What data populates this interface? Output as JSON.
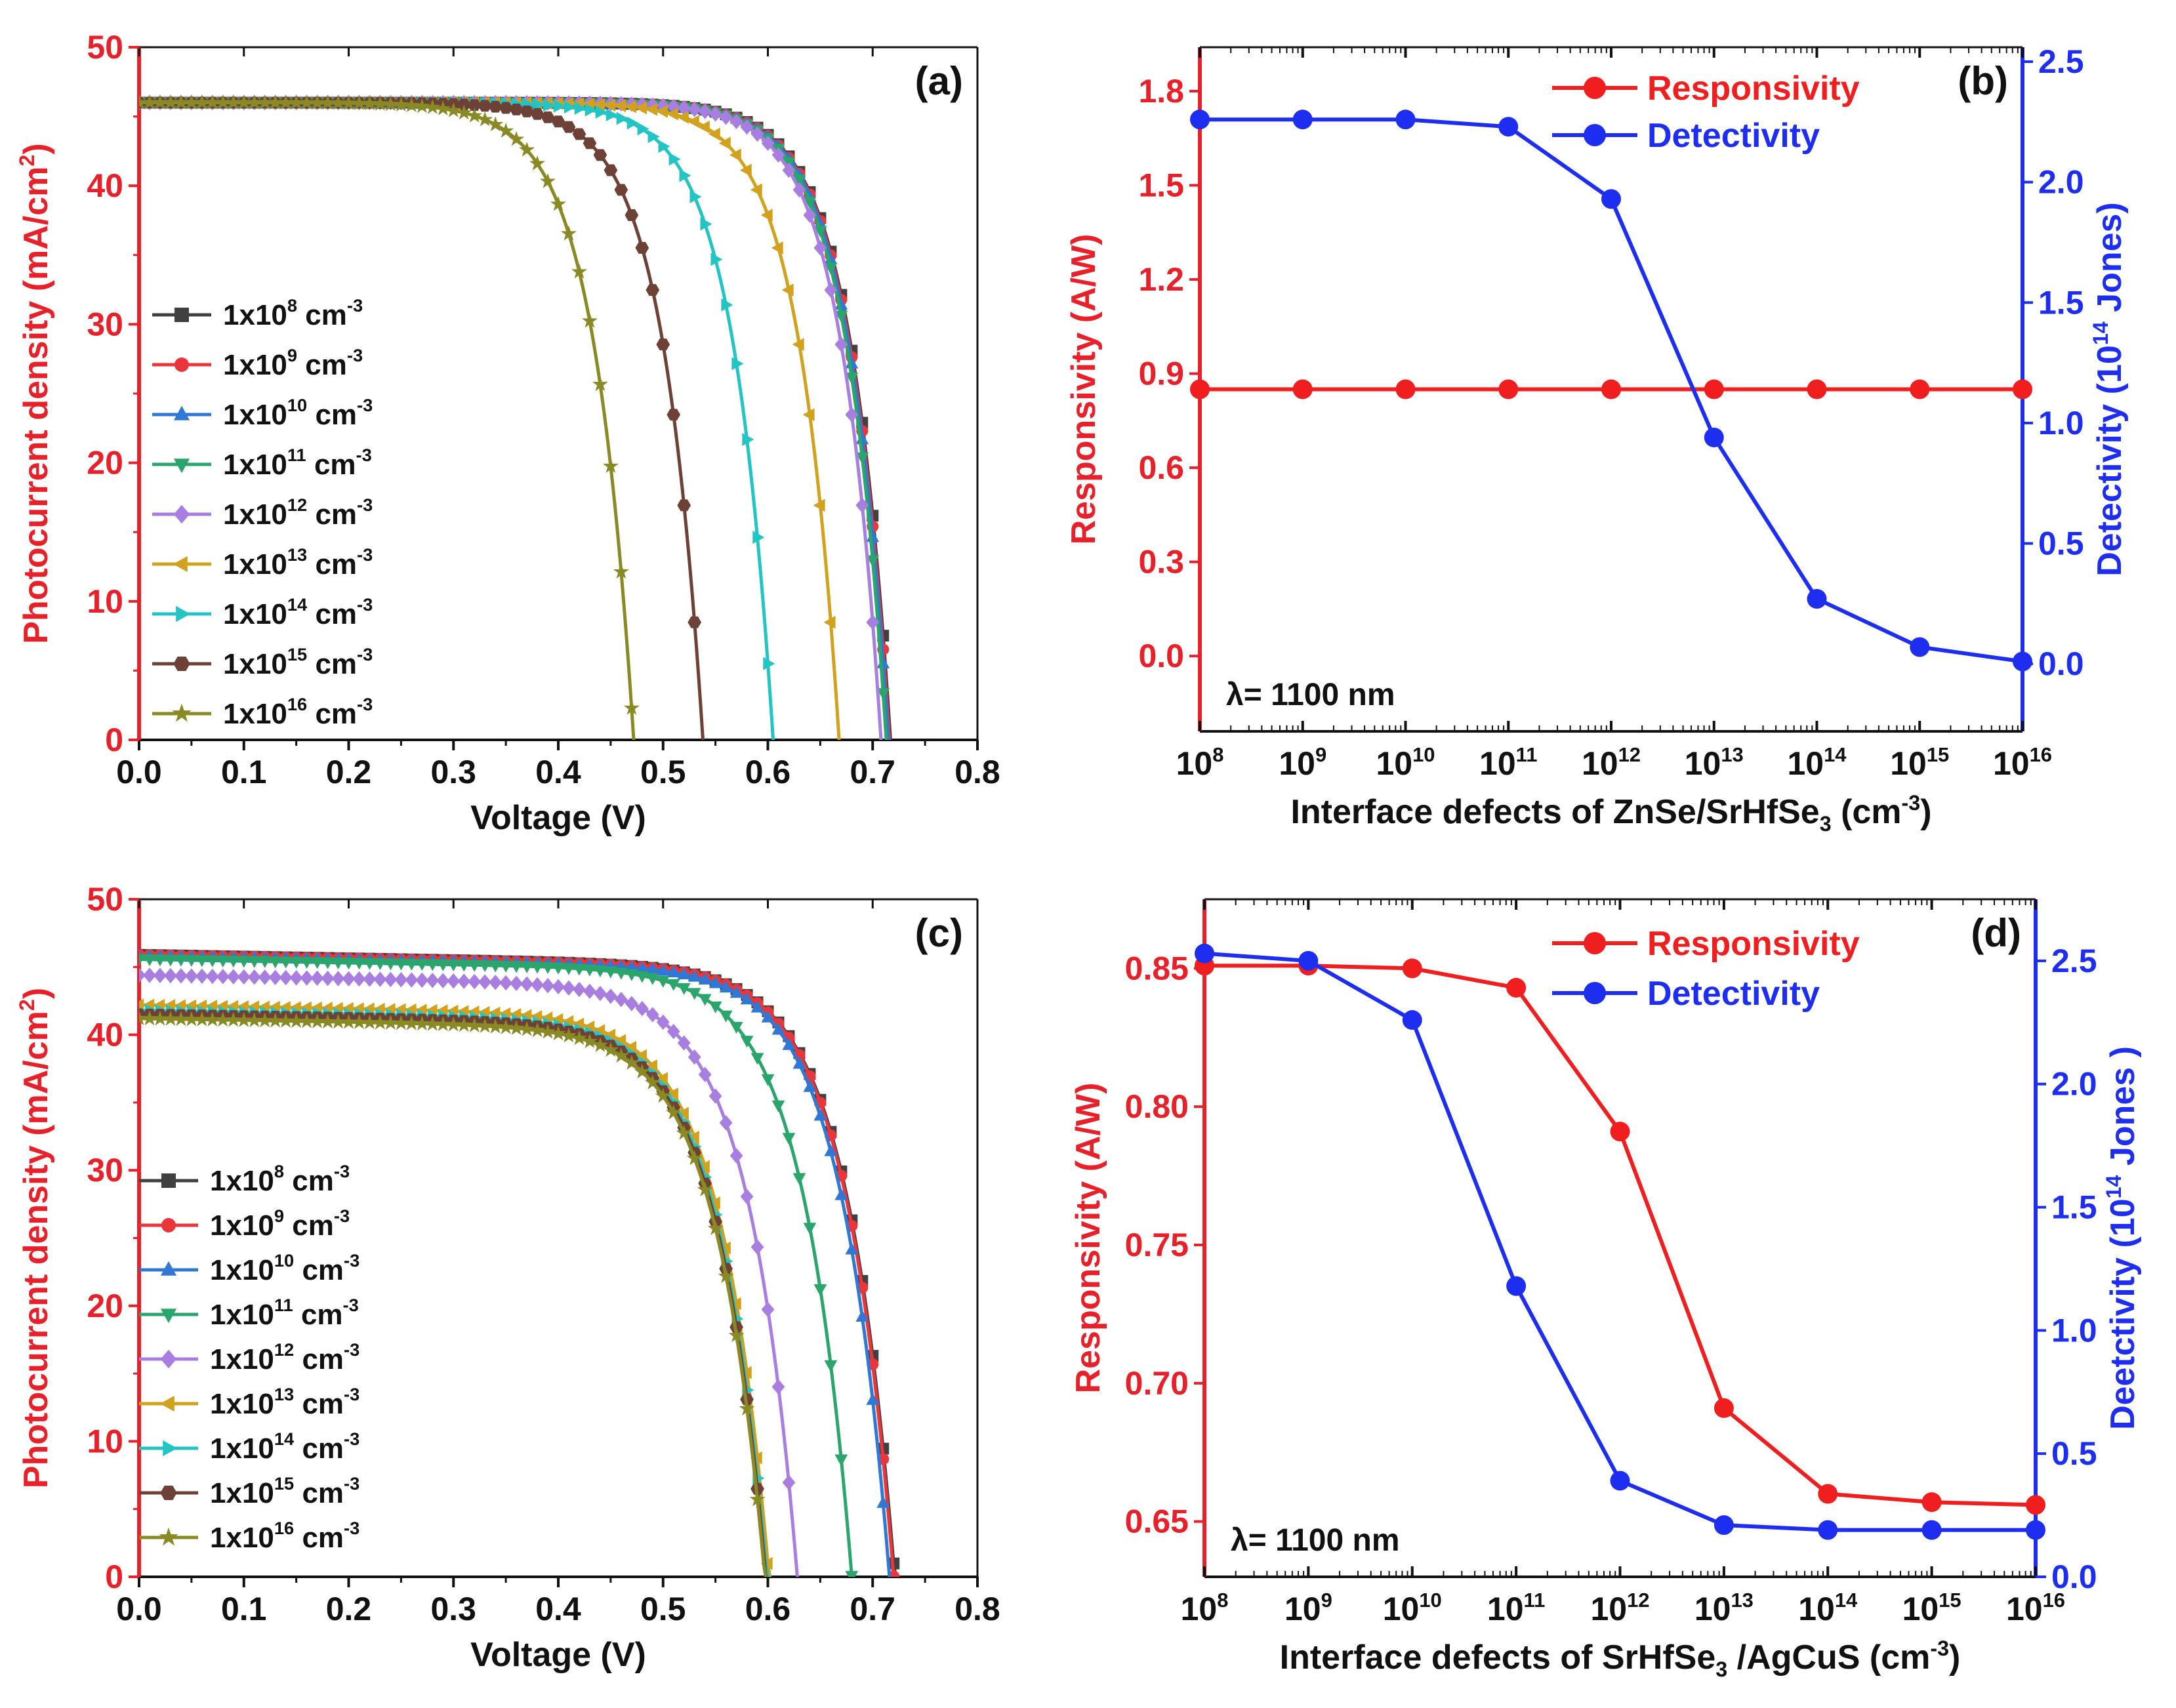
{
  "chart_data": [
    {
      "panel_label": "(a)",
      "type": "line",
      "xlabel": "Voltage (V)",
      "ylabel_main": "Photocurrent density (mA/cm",
      "ylabel_sup": "2",
      "ylabel_close": ")",
      "xlim": [
        0,
        0.8
      ],
      "ylim": [
        0,
        50
      ],
      "xticks": [
        "0.0",
        "0.1",
        "0.2",
        "0.3",
        "0.4",
        "0.5",
        "0.6",
        "0.7",
        "0.8"
      ],
      "yticks": [
        "0",
        "10",
        "20",
        "30",
        "40",
        "50"
      ],
      "jsc": 46,
      "legend_unit": "cm",
      "legend_unit_exp": "-3",
      "series": [
        {
          "prefix": "1x10",
          "exp": "8",
          "name": "1x10^8 cm^-3",
          "voc": 0.717,
          "color": "#404040",
          "marker": "square"
        },
        {
          "prefix": "1x10",
          "exp": "9",
          "name": "1x10^9 cm^-3",
          "voc": 0.716,
          "color": "#e8363a",
          "marker": "circle"
        },
        {
          "prefix": "1x10",
          "exp": "10",
          "name": "1x10^10 cm^-3",
          "voc": 0.715,
          "color": "#2f78d6",
          "marker": "tri-up"
        },
        {
          "prefix": "1x10",
          "exp": "11",
          "name": "1x10^11 cm^-3",
          "voc": 0.713,
          "color": "#2aa66c",
          "marker": "tri-down"
        },
        {
          "prefix": "1x10",
          "exp": "12",
          "name": "1x10^12 cm^-3",
          "voc": 0.708,
          "color": "#a87ee0",
          "marker": "diamond"
        },
        {
          "prefix": "1x10",
          "exp": "13",
          "name": "1x10^13 cm^-3",
          "voc": 0.668,
          "color": "#d2a21f",
          "marker": "tri-left"
        },
        {
          "prefix": "1x10",
          "exp": "14",
          "name": "1x10^14 cm^-3",
          "voc": 0.605,
          "color": "#23c4c4",
          "marker": "tri-right"
        },
        {
          "prefix": "1x10",
          "exp": "15",
          "name": "1x10^15 cm^-3",
          "voc": 0.538,
          "color": "#6e4136",
          "marker": "hexagon"
        },
        {
          "prefix": "1x10",
          "exp": "16",
          "name": "1x10^16 cm^-3",
          "voc": 0.472,
          "color": "#8a8a24",
          "marker": "star"
        }
      ]
    },
    {
      "panel_label": "(b)",
      "type": "line",
      "note": "λ= 1100 nm",
      "xlabel_main": "Interface defects of ZnSe/SrHfSe",
      "xlabel_sub": "3",
      "xlabel_tail": " (cm",
      "xlabel_sup": "-3",
      "xlabel_close": ")",
      "x_exponents": [
        "8",
        "9",
        "10",
        "11",
        "12",
        "13",
        "14",
        "15",
        "16"
      ],
      "ylabel_left": "Responsivity (A/W)",
      "ylabel_right_main": "Detectivity (10",
      "ylabel_right_sup": "14",
      "ylabel_right_tail": " Jones)",
      "ylim_left": [
        -0.24,
        1.94
      ],
      "yticks_left": [
        "0.0",
        "0.3",
        "0.6",
        "0.9",
        "1.2",
        "1.5",
        "1.8"
      ],
      "ylim_right": [
        -0.28,
        2.56
      ],
      "yticks_right": [
        "0.0",
        "0.5",
        "1.0",
        "1.5",
        "2.0",
        "2.5"
      ],
      "series": [
        {
          "name": "Responsivity",
          "axis": "left",
          "color": "#f01e1e",
          "values": [
            0.85,
            0.85,
            0.85,
            0.85,
            0.85,
            0.85,
            0.85,
            0.85,
            0.85
          ]
        },
        {
          "name": "Detectivity",
          "axis": "right",
          "color": "#1e2ef0",
          "values": [
            2.26,
            2.26,
            2.26,
            2.23,
            1.93,
            0.94,
            0.27,
            0.07,
            0.01
          ]
        }
      ]
    },
    {
      "panel_label": "(c)",
      "type": "line",
      "xlabel": "Voltage (V)",
      "ylabel_main": "Photocurrent density (mA/cm",
      "ylabel_sup": "2",
      "ylabel_close": ")",
      "xlim": [
        0,
        0.8
      ],
      "ylim": [
        0,
        50
      ],
      "xticks": [
        "0.0",
        "0.1",
        "0.2",
        "0.3",
        "0.4",
        "0.5",
        "0.6",
        "0.7",
        "0.8"
      ],
      "yticks": [
        "0",
        "10",
        "20",
        "30",
        "40",
        "50"
      ],
      "legend_unit": "cm",
      "legend_unit_exp": "-3",
      "series": [
        {
          "prefix": "1x10",
          "exp": "8",
          "name": "1x10^8 cm^-3",
          "jsc": 45.9,
          "voc": 0.722,
          "color": "#404040",
          "marker": "square"
        },
        {
          "prefix": "1x10",
          "exp": "9",
          "name": "1x10^9 cm^-3",
          "jsc": 45.9,
          "voc": 0.721,
          "color": "#e8363a",
          "marker": "circle"
        },
        {
          "prefix": "1x10",
          "exp": "10",
          "name": "1x10^10 cm^-3",
          "jsc": 45.8,
          "voc": 0.717,
          "color": "#2f78d6",
          "marker": "tri-up"
        },
        {
          "prefix": "1x10",
          "exp": "11",
          "name": "1x10^11 cm^-3",
          "jsc": 45.6,
          "voc": 0.681,
          "color": "#2aa66c",
          "marker": "tri-down"
        },
        {
          "prefix": "1x10",
          "exp": "12",
          "name": "1x10^12 cm^-3",
          "jsc": 44.4,
          "voc": 0.629,
          "color": "#a87ee0",
          "marker": "diamond"
        },
        {
          "prefix": "1x10",
          "exp": "13",
          "name": "1x10^13 cm^-3",
          "jsc": 42.2,
          "voc": 0.602,
          "color": "#d2a21f",
          "marker": "tri-left"
        },
        {
          "prefix": "1x10",
          "exp": "14",
          "name": "1x10^14 cm^-3",
          "jsc": 41.8,
          "voc": 0.6,
          "color": "#23c4c4",
          "marker": "tri-right"
        },
        {
          "prefix": "1x10",
          "exp": "15",
          "name": "1x10^15 cm^-3",
          "jsc": 41.5,
          "voc": 0.599,
          "color": "#6e4136",
          "marker": "hexagon"
        },
        {
          "prefix": "1x10",
          "exp": "16",
          "name": "1x10^16 cm^-3",
          "jsc": 41.2,
          "voc": 0.598,
          "color": "#8a8a24",
          "marker": "star"
        }
      ]
    },
    {
      "panel_label": "(d)",
      "type": "line",
      "note": "λ= 1100 nm",
      "xlabel_main": "Interface defects of SrHfSe",
      "xlabel_sub": "3",
      "xlabel_tail": " /AgCuS (cm",
      "xlabel_sup": "-3",
      "xlabel_close": ")",
      "x_exponents": [
        "8",
        "9",
        "10",
        "11",
        "12",
        "13",
        "14",
        "15",
        "16"
      ],
      "ylabel_left": "Responsivity (A/W)",
      "ylabel_right_main": "Deetctivity (10",
      "ylabel_right_sup": "14",
      "ylabel_right_tail": " Jones )",
      "ylim_left": [
        0.63,
        0.875
      ],
      "yticks_left": [
        "0.65",
        "0.70",
        "0.75",
        "0.80",
        "0.85"
      ],
      "ylim_right": [
        0.0,
        2.75
      ],
      "yticks_right": [
        "0.0",
        "0.5",
        "1.0",
        "1.5",
        "2.0",
        "2.5"
      ],
      "series": [
        {
          "name": "Responsivity",
          "axis": "left",
          "color": "#f01e1e",
          "values": [
            0.851,
            0.851,
            0.85,
            0.843,
            0.791,
            0.691,
            0.66,
            0.657,
            0.656
          ]
        },
        {
          "name": "Detectivity",
          "axis": "right",
          "color": "#1e2ef0",
          "values": [
            2.53,
            2.5,
            2.26,
            1.18,
            0.39,
            0.21,
            0.19,
            0.19,
            0.19
          ]
        }
      ]
    }
  ]
}
